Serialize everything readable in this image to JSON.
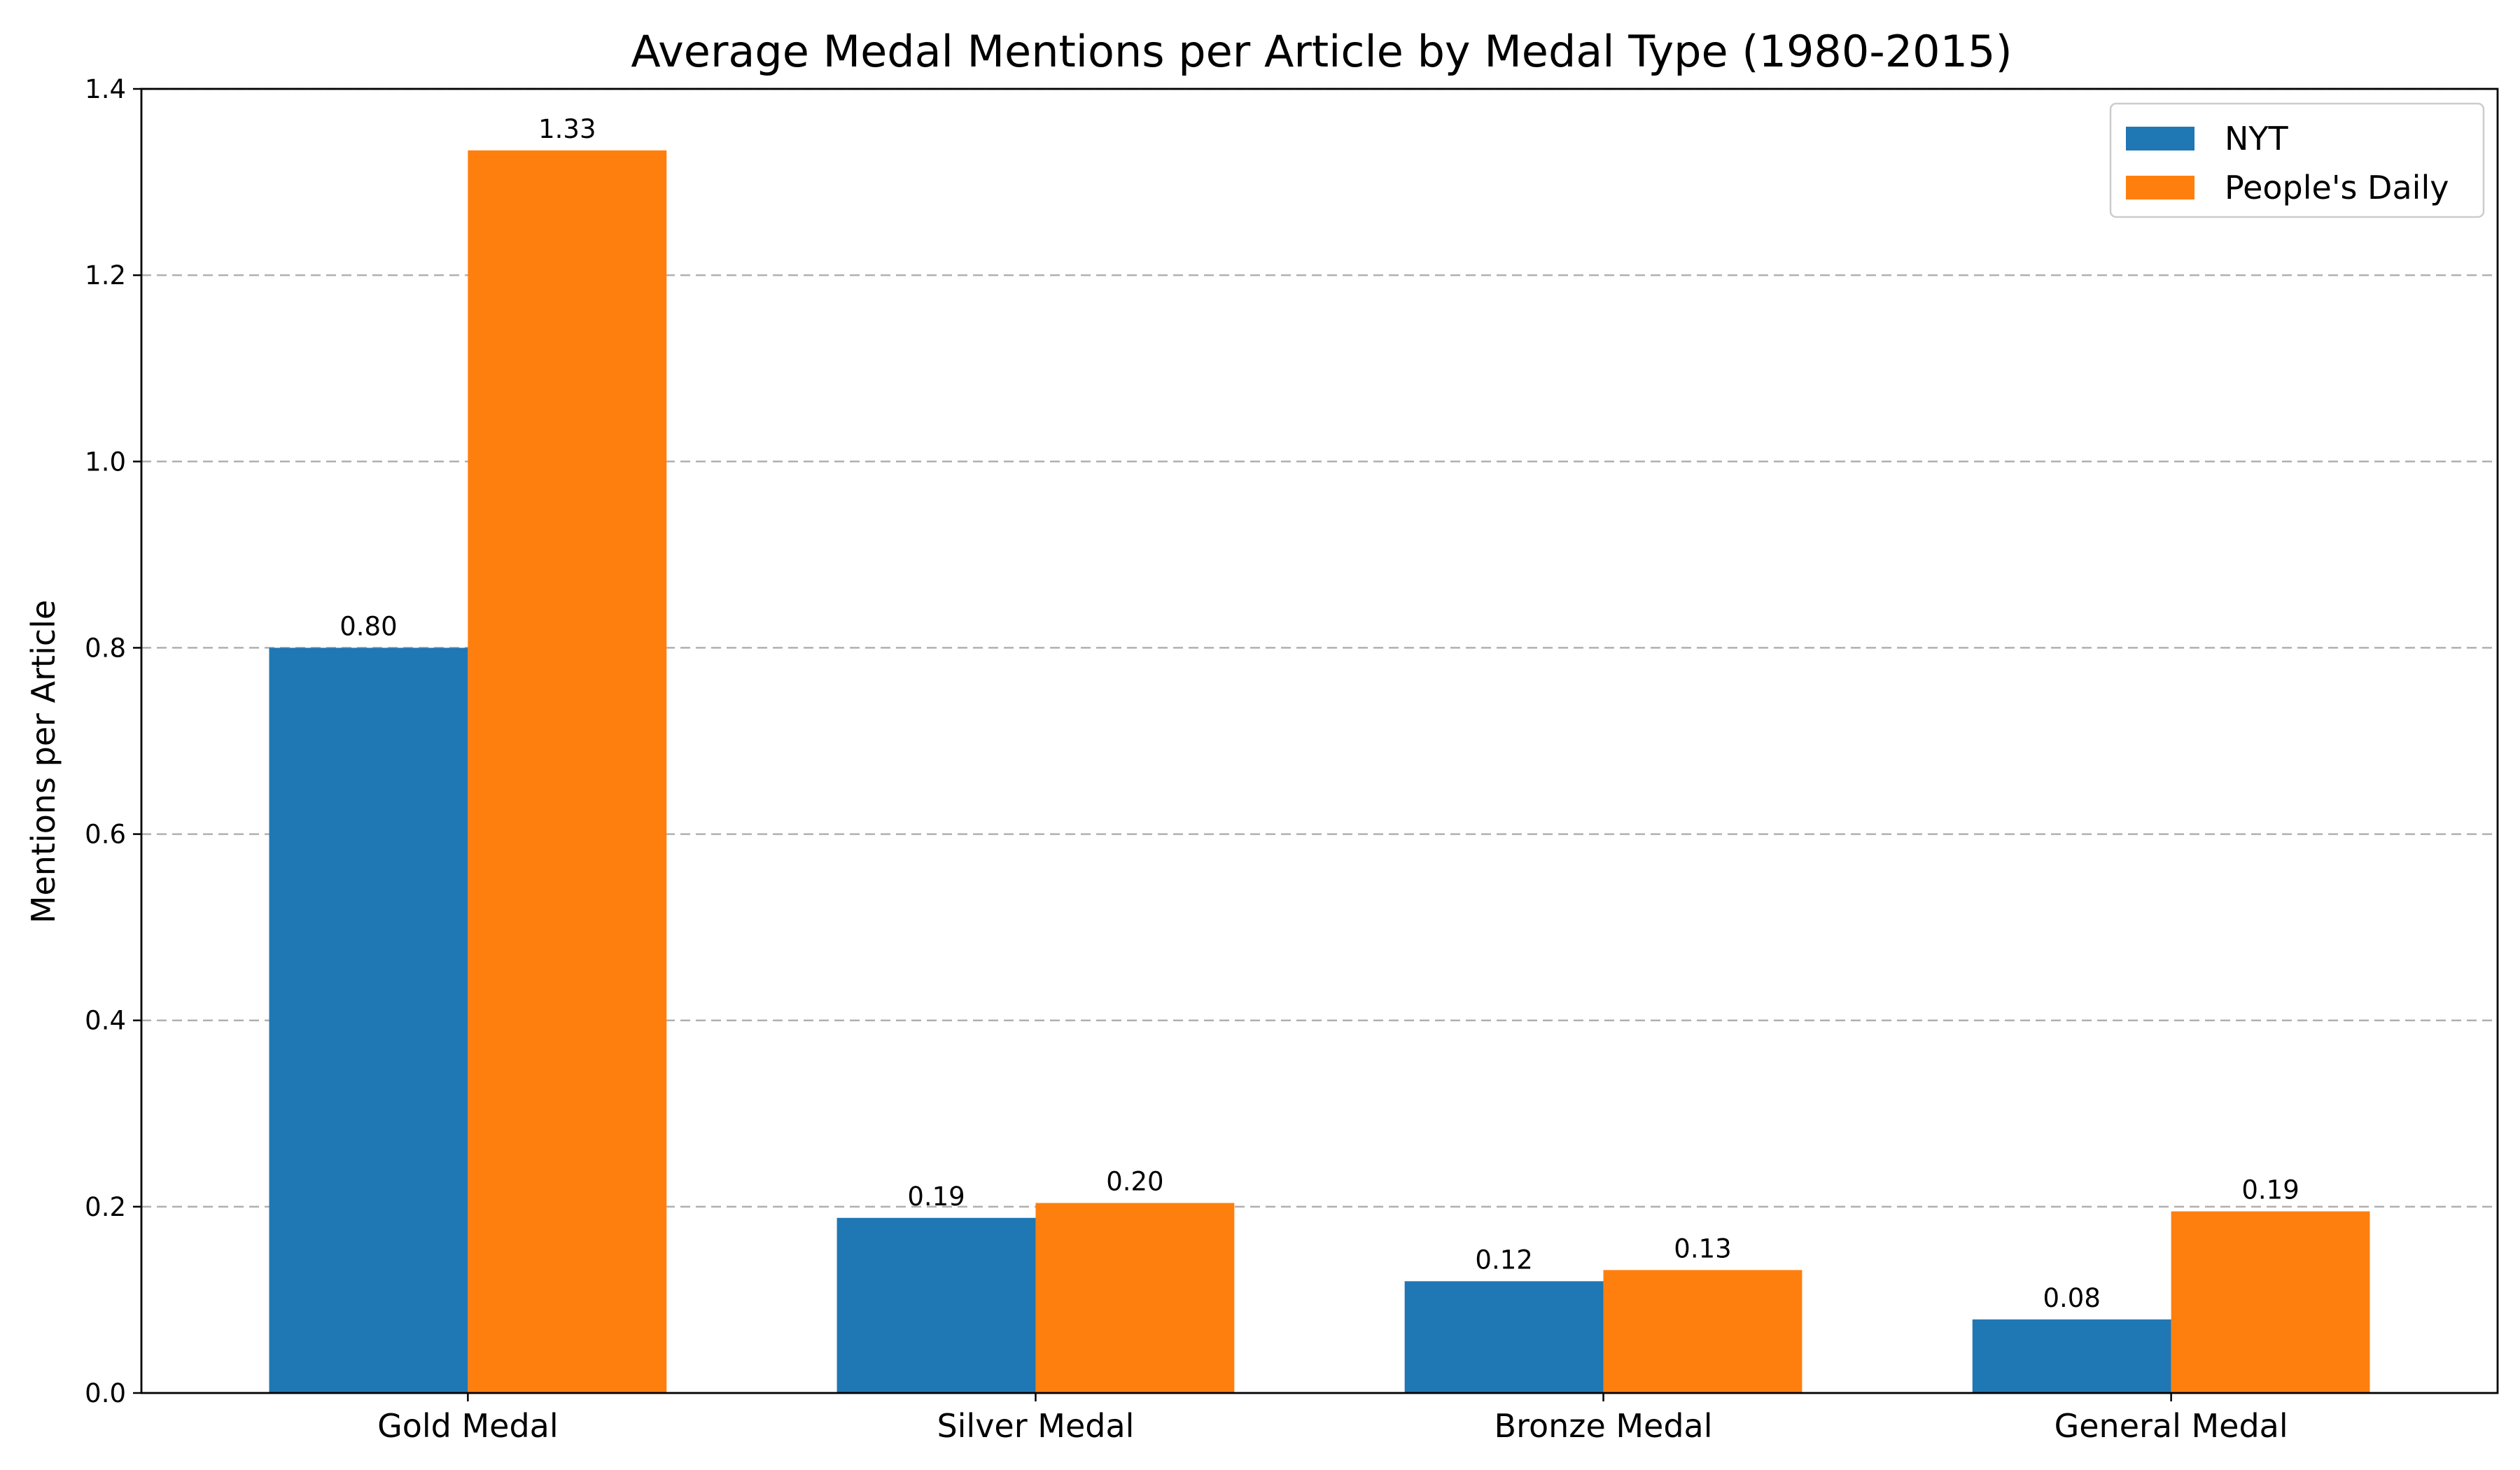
{
  "chart_data": {
    "type": "bar",
    "title": "Average Medal Mentions per Article by Medal Type (1980-2015)",
    "xlabel": "",
    "ylabel": "Mentions per Article",
    "ylim": [
      0,
      1.4
    ],
    "yticks": [
      0.0,
      0.2,
      0.4,
      0.6,
      0.8,
      1.0,
      1.2,
      1.4
    ],
    "ytick_labels": [
      "0.0",
      "0.2",
      "0.4",
      "0.6",
      "0.8",
      "1.0",
      "1.2",
      "1.4"
    ],
    "categories": [
      "Gold Medal",
      "Silver Medal",
      "Bronze Medal",
      "General Medal"
    ],
    "series": [
      {
        "name": "NYT",
        "color": "#1f77b4",
        "values": [
          0.8,
          0.188,
          0.12,
          0.079
        ],
        "labels": [
          "0.80",
          "0.19",
          "0.12",
          "0.08"
        ]
      },
      {
        "name": "People's Daily",
        "color": "#ff7f0e",
        "values": [
          1.334,
          0.204,
          0.132,
          0.195
        ],
        "labels": [
          "1.33",
          "0.20",
          "0.13",
          "0.19"
        ]
      }
    ],
    "grid": "y-dashed",
    "legend": "top-right"
  }
}
